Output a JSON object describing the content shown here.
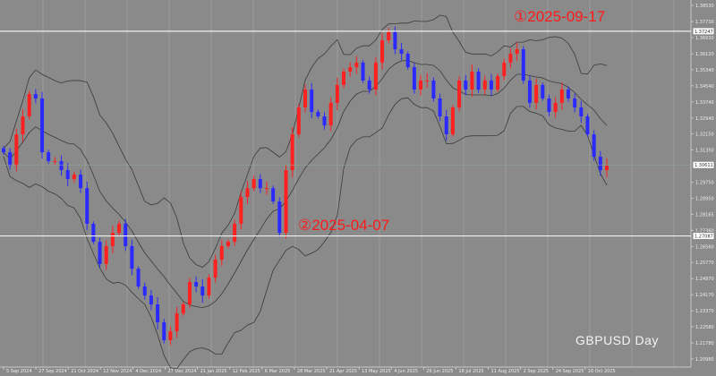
{
  "chart_data": {
    "type": "candlestick",
    "symbol_label": "GBPUSD  Day",
    "colors": {
      "background": "#8a8a8a",
      "up": "#ff2020",
      "down": "#2a2aff",
      "bands": "#3a3a3a",
      "grid": "#9c9c9c",
      "annotation": "#ff1a1a",
      "hline": "#f0f0f0"
    },
    "ylim": [
      1.2098,
      1.3853
    ],
    "y_ticks": [
      "1.38530",
      "1.37730",
      "1.36930",
      "1.36120",
      "1.35340",
      "1.34540",
      "1.33740",
      "1.32940",
      "1.32150",
      "1.31350",
      "1.29750",
      "1.28950",
      "1.28165",
      "1.27360",
      "1.26560",
      "1.25770",
      "1.24970",
      "1.24170",
      "1.23370",
      "1.22580",
      "1.21780",
      "1.20980"
    ],
    "x_ticks": [
      "5 Sep 2024",
      "27 Sep 2024",
      "21 Oct 2024",
      "12 Nov 2024",
      "4 Dec 2024",
      "27 Dec 2024",
      "21 Jan 2025",
      "12 Feb 2025",
      "6 Mar 2025",
      "28 Mar 2025",
      "21 Apr 2025",
      "13 May 2025",
      "4 Jun 2025",
      "26 Jun 2025",
      "18 Jul 2025",
      "11 Aug 2025",
      "2 Sep 2025",
      "24 Sep 2025",
      "16 Oct 2025"
    ],
    "closes": [
      1.3124,
      1.3057,
      1.3213,
      1.3302,
      1.3413,
      1.3391,
      1.3124,
      1.308,
      1.308,
      1.3035,
      1.2991,
      1.3013,
      1.2946,
      1.2769,
      1.268,
      1.2569,
      1.2658,
      1.2724,
      1.2769,
      1.2658,
      1.2546,
      1.2458,
      1.2413,
      1.2369,
      1.228,
      1.2191,
      1.2235,
      1.2324,
      1.2369,
      1.248,
      1.2458,
      1.2413,
      1.2502,
      1.2591,
      1.2658,
      1.268,
      1.2769,
      1.2902,
      1.2946,
      1.2991,
      1.2946,
      1.2946,
      1.288,
      1.2724,
      1.3035,
      1.3213,
      1.3346,
      1.3435,
      1.3324,
      1.3302,
      1.3257,
      1.3369,
      1.3458,
      1.3524,
      1.3546,
      1.3569,
      1.348,
      1.3435,
      1.3569,
      1.368,
      1.3724,
      1.3635,
      1.3613,
      1.3546,
      1.3435,
      1.348,
      1.348,
      1.3391,
      1.3302,
      1.3213,
      1.3346,
      1.348,
      1.3435,
      1.3524,
      1.3435,
      1.348,
      1.3435,
      1.3502,
      1.3569,
      1.3613,
      1.3635,
      1.348,
      1.3369,
      1.3458,
      1.3391,
      1.3324,
      1.3369,
      1.3435,
      1.3391,
      1.3346,
      1.3302,
      1.3213,
      1.3102,
      1.3035,
      1.3057
    ],
    "bollinger_bands": true,
    "horizontal_lines": [
      {
        "price": 1.37247,
        "label": "1.37247",
        "annotation": "①2025-09-17"
      },
      {
        "price": 1.27087,
        "label": "1.27087",
        "annotation": "②2025-04-07"
      }
    ],
    "current_price": {
      "price": 1.30611,
      "label": "1.30611"
    }
  }
}
